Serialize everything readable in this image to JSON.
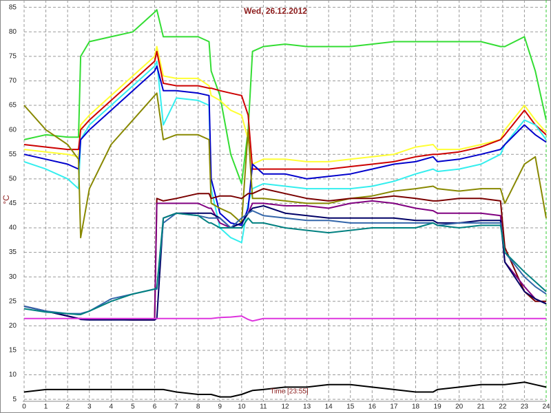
{
  "chart_data": {
    "type": "line",
    "title": "Wed, 26.12.2012",
    "ylabel": "°C",
    "annotation": "Time [23:55]",
    "x": [
      0,
      1,
      2,
      2.5,
      2.6,
      3,
      4,
      5,
      6,
      6.1,
      6.4,
      7,
      8,
      8.5,
      8.6,
      9,
      9.5,
      10,
      10.3,
      10.5,
      11,
      12,
      13,
      14,
      15,
      16,
      17,
      18,
      18.8,
      19,
      20,
      21,
      21.9,
      22.1,
      23,
      23.5,
      24
    ],
    "xlim": [
      0,
      24
    ],
    "xticks": [
      0,
      1,
      2,
      3,
      4,
      5,
      6,
      7,
      8,
      9,
      10,
      11,
      12,
      13,
      14,
      15,
      16,
      17,
      18,
      19,
      20,
      21,
      22,
      23,
      24
    ],
    "ylim": [
      4.6,
      86.5
    ],
    "yticks": [
      5,
      10,
      15,
      20,
      25,
      30,
      35,
      40,
      45,
      50,
      55,
      60,
      65,
      70,
      75,
      80,
      85
    ],
    "grid": true,
    "series": [
      {
        "color": "#33dd33",
        "values": [
          58,
          59,
          58.5,
          58.5,
          75,
          78,
          79,
          80,
          84,
          84.5,
          79,
          79,
          79,
          78,
          72,
          67,
          55,
          49,
          60,
          76,
          77,
          77.5,
          77,
          77,
          77,
          77.5,
          78,
          78,
          78,
          78,
          78,
          78,
          77,
          77,
          79,
          72,
          62
        ]
      },
      {
        "color": "#ffff33",
        "values": [
          56,
          55.5,
          55,
          54.5,
          61,
          63,
          67,
          71,
          75,
          77,
          71,
          70.5,
          70.5,
          69,
          67,
          66,
          64,
          63,
          58,
          53,
          54,
          54,
          53.5,
          53.5,
          54,
          54.5,
          55,
          56.5,
          57,
          56,
          56,
          57,
          58,
          60,
          65,
          62,
          59.5
        ]
      },
      {
        "color": "#cc0000",
        "values": [
          57,
          56.5,
          56,
          56,
          60,
          62,
          66,
          70,
          74,
          76,
          69.5,
          69,
          69,
          68.5,
          68.5,
          68,
          67.5,
          67,
          63,
          52,
          52,
          52,
          52,
          52,
          52.5,
          53,
          53.5,
          54.5,
          55,
          55,
          55.5,
          56.5,
          58,
          59,
          64,
          61,
          59
        ]
      },
      {
        "color": "#33eeee",
        "values": [
          53.5,
          52,
          50,
          48,
          58,
          61,
          65,
          69,
          73,
          74,
          61,
          66.5,
          66,
          65,
          48,
          40,
          38,
          37,
          45,
          48,
          49,
          48.5,
          48,
          48,
          48,
          48.5,
          49.5,
          51,
          52,
          51.5,
          52,
          53,
          55,
          57,
          62,
          61,
          58
        ]
      },
      {
        "color": "#0000cc",
        "values": [
          55,
          54,
          53,
          52,
          58,
          60,
          64,
          68,
          72,
          73,
          68,
          68,
          67.5,
          67,
          50,
          43,
          41,
          40.5,
          44,
          53,
          51,
          51,
          50,
          50.5,
          51,
          52,
          53,
          53.5,
          54.5,
          53.5,
          54,
          55,
          56,
          57,
          61,
          59,
          57.5
        ]
      },
      {
        "color": "#888800",
        "values": [
          65,
          60,
          57,
          54,
          38,
          48,
          57,
          62,
          67,
          67.5,
          58,
          59,
          59,
          58,
          45,
          44,
          43,
          41,
          60,
          46,
          46,
          45.5,
          45,
          45,
          46,
          46.5,
          47.5,
          48,
          48.5,
          48,
          47.5,
          48,
          48,
          45,
          53,
          54.5,
          42
        ]
      },
      {
        "color": "#7a0000",
        "values": [
          24,
          23,
          22,
          21.5,
          21.5,
          21.3,
          21.3,
          21.2,
          21.2,
          46,
          45.5,
          46,
          47,
          47,
          46,
          46.5,
          46.5,
          46,
          47,
          47,
          48,
          47,
          46,
          45.5,
          46,
          46,
          46.5,
          46,
          45.5,
          45.5,
          46,
          46,
          45.5,
          36,
          27,
          25,
          25
        ]
      },
      {
        "color": "#800080",
        "values": [
          24,
          23,
          22,
          21.5,
          21.5,
          21.3,
          21.3,
          21.2,
          21.2,
          45,
          45,
          45,
          45,
          44,
          44,
          41,
          40,
          41,
          43,
          45,
          45,
          44.5,
          44.5,
          44,
          45,
          45.5,
          45,
          44,
          43.5,
          43,
          43,
          43,
          42.5,
          33,
          28,
          25.5,
          24.5
        ]
      },
      {
        "color": "#000066",
        "values": [
          24,
          23,
          22,
          21.5,
          21.3,
          21.2,
          21.2,
          21.2,
          21.2,
          21.5,
          42,
          43,
          43,
          43,
          43,
          42,
          40,
          41,
          43,
          44,
          44.5,
          43,
          42.5,
          42,
          42,
          42,
          42,
          41.5,
          41.5,
          41,
          41,
          41.5,
          41.5,
          33,
          27,
          25.5,
          24.5
        ]
      },
      {
        "color": "#3366aa",
        "values": [
          24,
          23,
          22.5,
          22.5,
          22.5,
          23,
          25.5,
          26.5,
          27.5,
          27.5,
          41,
          43,
          42.5,
          42,
          42,
          42,
          40,
          42,
          43,
          43.5,
          42.5,
          42,
          41.5,
          41.5,
          41,
          41,
          41,
          41,
          41,
          40.5,
          41,
          41,
          41,
          35,
          30,
          28,
          26.5
        ]
      },
      {
        "color": "#008080",
        "values": [
          23.5,
          22.8,
          22.5,
          22.3,
          22.3,
          23,
          25,
          26.5,
          27.5,
          27.8,
          42,
          43,
          42.5,
          41,
          41,
          40,
          40,
          40,
          42,
          41,
          41,
          40,
          39.5,
          39,
          39.5,
          40,
          40,
          40,
          41,
          40.5,
          40,
          40.5,
          40.5,
          35,
          31,
          29,
          27
        ]
      },
      {
        "color": "#dd33dd",
        "values": [
          21.5,
          21.5,
          21.5,
          21.5,
          21.5,
          21.5,
          21.5,
          21.5,
          21.5,
          21.5,
          21.5,
          21.5,
          21.5,
          21.5,
          21.5,
          21.7,
          21.8,
          22,
          21.3,
          21,
          21.5,
          21.5,
          21.5,
          21.5,
          21.5,
          21.5,
          21.5,
          21.5,
          21.5,
          21.5,
          21.5,
          21.5,
          21.5,
          21.5,
          21.5,
          21.5,
          21.5
        ]
      },
      {
        "color": "#000000",
        "values": [
          6.5,
          7,
          7,
          7,
          7,
          7,
          7,
          7,
          7,
          7,
          7,
          6.5,
          6,
          6,
          6,
          5.5,
          5.5,
          6,
          6.5,
          6.8,
          7,
          7.5,
          7.5,
          8,
          8,
          7.5,
          7,
          6.5,
          6.5,
          7,
          7.5,
          8,
          8,
          8,
          8.5,
          8,
          7.5
        ]
      }
    ]
  }
}
